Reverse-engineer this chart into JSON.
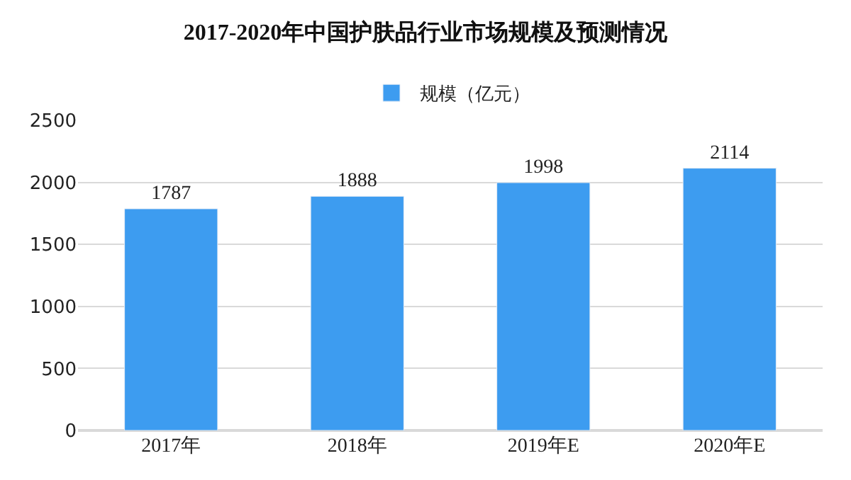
{
  "chart_data": {
    "type": "bar",
    "title": "2017-2020年中国护肤品行业市场规模及预测情况",
    "categories": [
      "2017年",
      "2018年",
      "2019年E",
      "2020年E"
    ],
    "series": [
      {
        "name": "规模（亿元）",
        "color": "#3d9cf0",
        "values": [
          1787,
          1888,
          1998,
          2114
        ]
      }
    ],
    "ylim": [
      0,
      2500
    ],
    "yticks": [
      0,
      500,
      1000,
      1500,
      2000,
      2500
    ],
    "grid": "y",
    "legend": "top",
    "data_labels": true
  }
}
